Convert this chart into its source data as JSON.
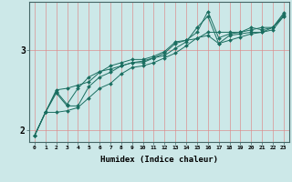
{
  "title": "",
  "xlabel": "Humidex (Indice chaleur)",
  "ylabel": "",
  "bg_color": "#cce8e8",
  "plot_bg_color": "#cce8e8",
  "grid_color": "#dd8888",
  "line_color": "#1a6e60",
  "marker_color": "#1a6e60",
  "xlim": [
    -0.5,
    23.5
  ],
  "ylim": [
    1.85,
    3.6
  ],
  "xticks": [
    0,
    1,
    2,
    3,
    4,
    5,
    6,
    7,
    8,
    9,
    10,
    11,
    12,
    13,
    14,
    15,
    16,
    17,
    18,
    19,
    20,
    21,
    22,
    23
  ],
  "yticks": [
    2,
    3
  ],
  "series": [
    [
      1.93,
      2.22,
      2.46,
      2.3,
      2.3,
      2.54,
      2.66,
      2.72,
      2.8,
      2.84,
      2.84,
      2.9,
      2.96,
      3.08,
      3.12,
      3.14,
      3.22,
      3.22,
      3.22,
      3.22,
      3.28,
      3.25,
      3.28,
      3.42
    ],
    [
      1.93,
      2.22,
      2.48,
      2.32,
      2.52,
      2.66,
      2.73,
      2.76,
      2.8,
      2.84,
      2.86,
      2.9,
      2.93,
      3.02,
      3.1,
      3.28,
      3.42,
      3.08,
      3.18,
      3.2,
      3.22,
      3.22,
      3.28,
      3.44
    ],
    [
      1.93,
      2.22,
      2.5,
      2.52,
      2.56,
      2.6,
      2.72,
      2.8,
      2.84,
      2.88,
      2.88,
      2.92,
      2.98,
      3.1,
      3.12,
      3.22,
      3.48,
      3.15,
      3.2,
      3.22,
      3.25,
      3.28,
      3.28,
      3.46
    ],
    [
      1.93,
      2.22,
      2.22,
      2.24,
      2.28,
      2.4,
      2.52,
      2.58,
      2.7,
      2.78,
      2.8,
      2.84,
      2.9,
      2.96,
      3.05,
      3.15,
      3.18,
      3.08,
      3.12,
      3.16,
      3.2,
      3.22,
      3.25,
      3.42
    ]
  ]
}
